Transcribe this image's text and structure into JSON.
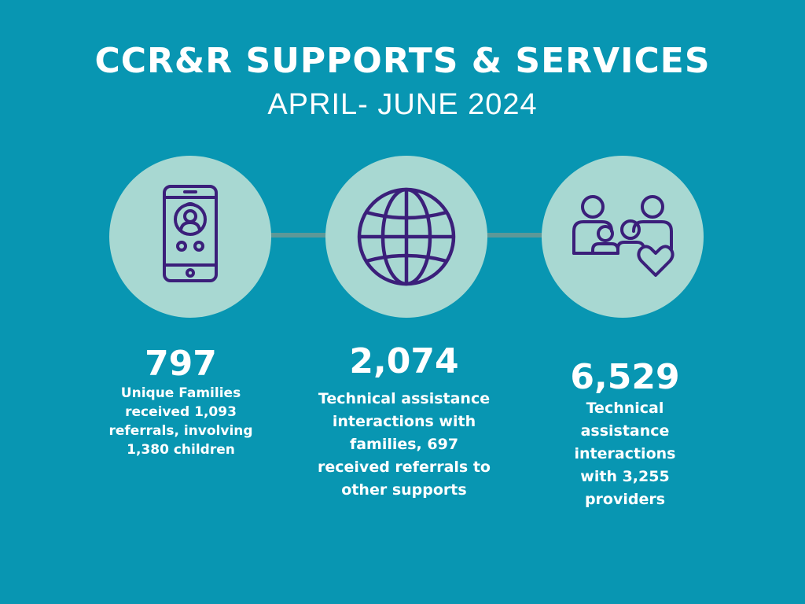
{
  "header": {
    "title": "CCR&R SUPPORTS & SERVICES",
    "subtitle": "APRIL- JUNE 2024"
  },
  "colors": {
    "background": "#0896b2",
    "circle": "#a8d8d2",
    "connector": "#5d9898",
    "icon_stroke": "#3b1f7a",
    "text": "#ffffff"
  },
  "stats": [
    {
      "icon": "smartphone-contact-icon",
      "number": "797",
      "description": "Unique Families received 1,093 referrals, involving 1,380 children"
    },
    {
      "icon": "globe-icon",
      "number": "2,074",
      "description": "Technical assistance interactions with families, 697 received referrals to other supports"
    },
    {
      "icon": "family-heart-icon",
      "number": "6,529",
      "description": "Technical assistance interactions with 3,255 providers"
    }
  ]
}
